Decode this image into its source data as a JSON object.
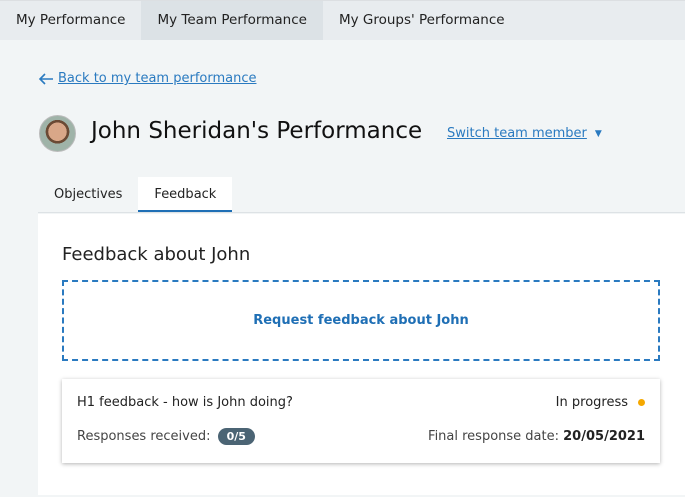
{
  "topnav": {
    "items": [
      {
        "label": "My Performance"
      },
      {
        "label": "My Team Performance",
        "active": true
      },
      {
        "label": "My Groups' Performance"
      }
    ]
  },
  "back": {
    "icon": "arrow-left-icon",
    "label": "Back to my team performance"
  },
  "header": {
    "title": "John Sheridan's Performance",
    "switch_label": "Switch team member"
  },
  "tabs": [
    {
      "label": "Objectives"
    },
    {
      "label": "Feedback",
      "active": true
    }
  ],
  "feedback": {
    "heading": "Feedback about John",
    "request_label": "Request feedback about John",
    "card": {
      "title": "H1 feedback - how is John doing?",
      "status": "In progress",
      "status_color": "#f5a800",
      "responses_label": "Responses received:",
      "responses_value": "0/5",
      "date_label": "Final response date:",
      "date_value": "20/05/2021"
    }
  },
  "colors": {
    "accent": "#2a7ac0"
  }
}
